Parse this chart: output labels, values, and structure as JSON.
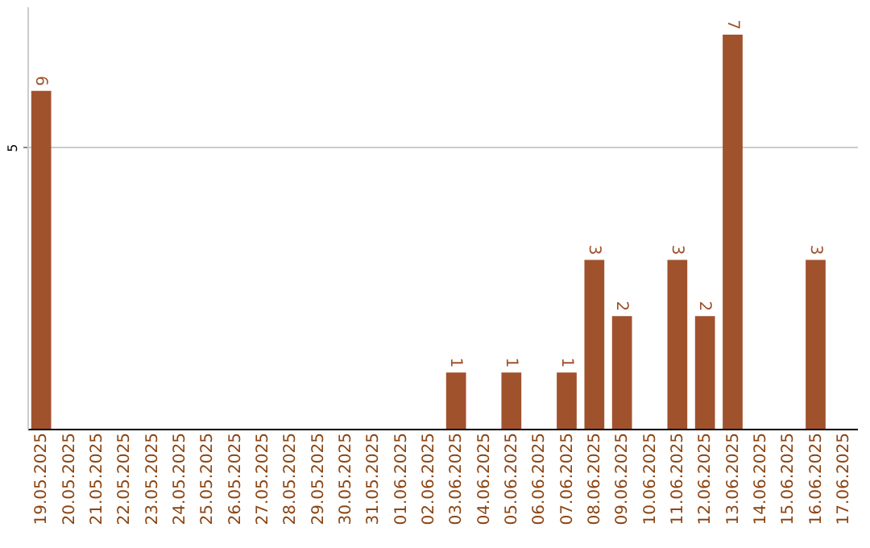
{
  "chart_data": {
    "type": "bar",
    "categories": [
      "19.05.2025",
      "20.05.2025",
      "21.05.2025",
      "22.05.2025",
      "23.05.2025",
      "24.05.2025",
      "25.05.2025",
      "26.05.2025",
      "27.05.2025",
      "28.05.2025",
      "29.05.2025",
      "30.05.2025",
      "31.05.2025",
      "01.06.2025",
      "02.06.2025",
      "03.06.2025",
      "04.06.2025",
      "05.06.2025",
      "06.06.2025",
      "07.06.2025",
      "08.06.2025",
      "09.06.2025",
      "10.06.2025",
      "11.06.2025",
      "12.06.2025",
      "13.06.2025",
      "14.06.2025",
      "15.06.2025",
      "16.06.2025",
      "17.06.2025"
    ],
    "values": [
      6,
      null,
      null,
      null,
      null,
      null,
      null,
      null,
      null,
      null,
      null,
      null,
      null,
      null,
      null,
      1,
      null,
      1,
      null,
      1,
      3,
      2,
      null,
      3,
      2,
      7,
      null,
      null,
      3,
      null
    ],
    "color": "#a0522d",
    "ylim": [
      0,
      7.5
    ],
    "yticks": [
      5
    ],
    "grid": "y",
    "data_labels": true
  }
}
